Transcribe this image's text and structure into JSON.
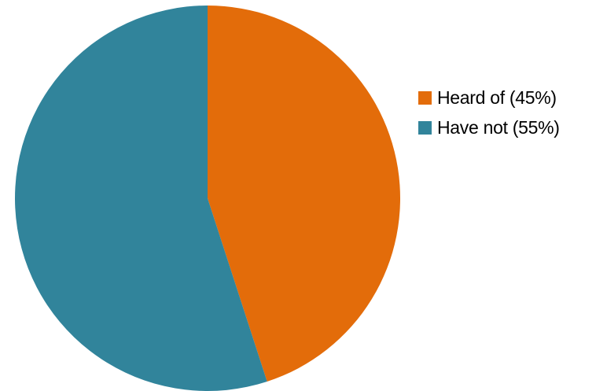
{
  "chart_data": {
    "type": "pie",
    "title": "",
    "slices": [
      {
        "label": "Heard of (45%)",
        "value": 45,
        "color": "#e36c0a"
      },
      {
        "label": "Have not (55%)",
        "value": 55,
        "color": "#31849b"
      }
    ],
    "start_angle_deg": 0,
    "direction": "clockwise",
    "legend_position": "right",
    "data_labels": false
  }
}
